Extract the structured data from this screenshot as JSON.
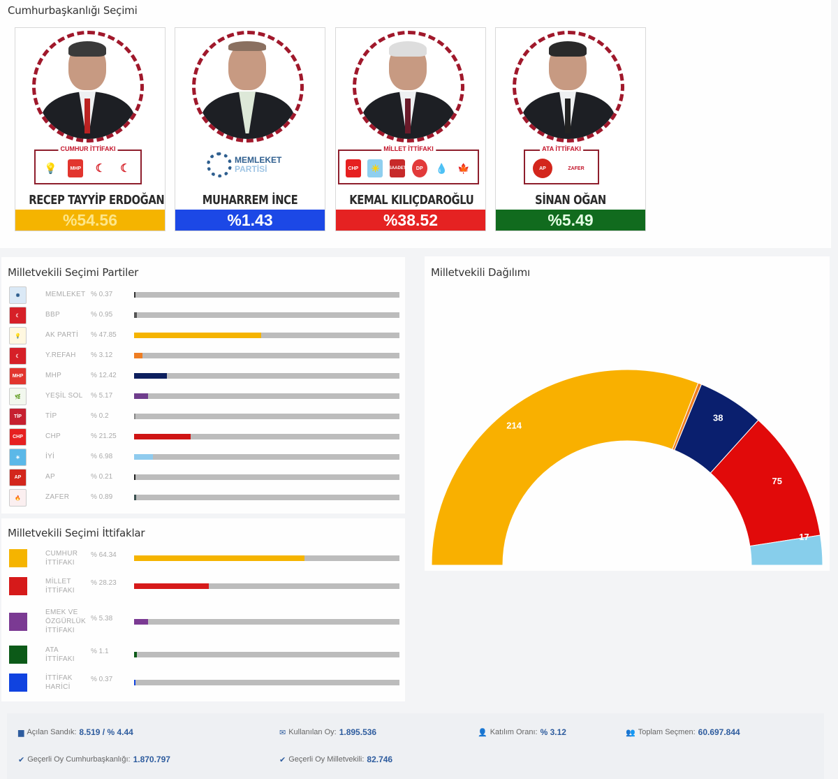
{
  "presidential": {
    "title": "Cumhurbaşkanlığı Seçimi",
    "candidates": [
      {
        "name": "RECEP TAYYİP ERDOĞAN",
        "percent": "%54.56",
        "color": "#f5b400",
        "text_color": "#fde68a",
        "alliance": "CUMHUR İTTİFAKI",
        "party_logos": [
          "AK PARTİ",
          "MHP",
          "BBP",
          "YENİDEN REFAH"
        ]
      },
      {
        "name": "MUHARREM İNCE",
        "percent": "%1.43",
        "color": "#1c48e6",
        "text_color": "#ffffff",
        "party": "MEMLEKET",
        "party_sub": "PARTİSİ"
      },
      {
        "name": "KEMAL KILIÇDAROĞLU",
        "percent": "%38.52",
        "color": "#e52222",
        "text_color": "#ffffff",
        "alliance": "MİLLET İTTİFAKI",
        "party_logos": [
          "CHP",
          "İYİ",
          "SAADET",
          "DP",
          "DEVA",
          "GELECEK"
        ]
      },
      {
        "name": "SİNAN OĞAN",
        "percent": "%5.49",
        "color": "#116b1e",
        "text_color": "#e5ffe5",
        "alliance": "ATA İTTİFAKI",
        "party_logos": [
          "AP",
          "ZAFER PARTİSİ"
        ]
      }
    ]
  },
  "parties_panel": {
    "title": "Milletvekili Seçimi Partiler",
    "rows": [
      {
        "name": "MEMLEKET",
        "percent": "% 0.37",
        "value": 0.37,
        "color": "#333333",
        "logo": "memleket-logo",
        "logo_bg": "#dbe9f6",
        "logo_text": "✺"
      },
      {
        "name": "BBP",
        "percent": "% 0.95",
        "value": 0.95,
        "color": "#555555",
        "logo": "bbp-logo",
        "logo_bg": "#d62028",
        "logo_text": "☾"
      },
      {
        "name": "AK PARTİ",
        "percent": "% 47.85",
        "value": 47.85,
        "color": "#f5b400",
        "logo": "ak-parti-logo",
        "logo_bg": "#fff8e0",
        "logo_text": "💡"
      },
      {
        "name": "Y.REFAH",
        "percent": "% 3.12",
        "value": 3.12,
        "color": "#ee7d22",
        "logo": "yeniden-refah-logo",
        "logo_bg": "#d62028",
        "logo_text": "☾"
      },
      {
        "name": "MHP",
        "percent": "% 12.42",
        "value": 12.42,
        "color": "#0d1f5e",
        "logo": "mhp-logo",
        "logo_bg": "#e2352e",
        "logo_text": "MHP"
      },
      {
        "name": "YEŞİL SOL",
        "percent": "% 5.17",
        "value": 5.17,
        "color": "#6f3d8c",
        "logo": "yesil-sol-logo",
        "logo_bg": "#f2f8ee",
        "logo_text": "🌿"
      },
      {
        "name": "TİP",
        "percent": "% 0.2",
        "value": 0.2,
        "color": "#888888",
        "logo": "tip-logo",
        "logo_bg": "#c62030",
        "logo_text": "TİP"
      },
      {
        "name": "CHP",
        "percent": "% 21.25",
        "value": 21.25,
        "color": "#cf1414",
        "logo": "chp-logo",
        "logo_bg": "#e62020",
        "logo_text": "CHP"
      },
      {
        "name": "İYİ",
        "percent": "% 6.98",
        "value": 6.98,
        "color": "#8fcbee",
        "logo": "iyi-logo",
        "logo_bg": "#5bb8e8",
        "logo_text": "☀"
      },
      {
        "name": "AP",
        "percent": "% 0.21",
        "value": 0.21,
        "color": "#222222",
        "logo": "ap-logo",
        "logo_bg": "#d3261c",
        "logo_text": "AP"
      },
      {
        "name": "ZAFER",
        "percent": "% 0.89",
        "value": 0.89,
        "color": "#3a5050",
        "logo": "zafer-logo",
        "logo_bg": "#fbeff0",
        "logo_text": "🔥"
      }
    ]
  },
  "alliances_panel": {
    "title": "Milletvekili Seçimi İttifaklar",
    "rows": [
      {
        "name_lines": [
          "CUMHUR",
          "İTTİFAKI"
        ],
        "percent": "% 64.34",
        "value": 64.34,
        "color": "#f5b400"
      },
      {
        "name_lines": [
          "MİLLET",
          "İTTİFAKI"
        ],
        "percent": "% 28.23",
        "value": 28.23,
        "color": "#d61a1a"
      },
      {
        "name_lines": [
          "EMEK VE",
          "ÖZGÜRLÜK",
          "İTTİFAKI"
        ],
        "percent": "% 5.38",
        "value": 5.38,
        "color": "#7b3a93"
      },
      {
        "name_lines": [
          "ATA",
          "İTTİFAKI"
        ],
        "percent": "% 1.1",
        "value": 1.1,
        "color": "#0c5a18"
      },
      {
        "name_lines": [
          "İTTİFAK",
          "HARİCİ"
        ],
        "percent": "% 0.37",
        "value": 0.37,
        "color": "#1043e0"
      }
    ]
  },
  "seat_chart": {
    "title": "Milletvekili Dağılımı"
  },
  "chart_data": {
    "type": "pie",
    "subtype": "semicircle-donut",
    "title": "Milletvekili Dağılımı",
    "categories": [
      "AK PARTİ",
      "Y.REFAH",
      "MHP",
      "CHP",
      "İYİ"
    ],
    "values": [
      214,
      2,
      38,
      75,
      17
    ],
    "labels": [
      "214",
      "",
      "38",
      "75",
      "17"
    ],
    "colors": [
      "#f9b000",
      "#ee7d22",
      "#0a1f6e",
      "#e10a0a",
      "#87ceeb"
    ],
    "legend": "none"
  },
  "footer": {
    "stats": [
      {
        "icon": "ballot-box-icon",
        "glyph": "▆",
        "label": "Açılan Sandık:",
        "value": "8.519 / % 4.44"
      },
      {
        "icon": "envelope-icon",
        "glyph": "✉",
        "label": "Kullanılan Oy:",
        "value": "1.895.536"
      },
      {
        "icon": "user-icon",
        "glyph": "👤",
        "label": "Katılım Oranı:",
        "value": "% 3.12"
      },
      {
        "icon": "users-icon",
        "glyph": "👥",
        "label": "Toplam Seçmen:",
        "value": "60.697.844"
      },
      {
        "icon": "check-icon",
        "glyph": "✔",
        "label": "Geçerli Oy Cumhurbaşkanlığı:",
        "value": "1.870.797"
      },
      {
        "icon": "check-icon",
        "glyph": "✔",
        "label": "Geçerli Oy Milletvekili:",
        "value": "82.746"
      }
    ]
  }
}
